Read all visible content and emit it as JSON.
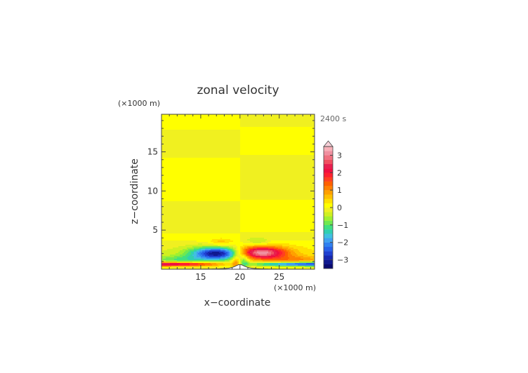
{
  "chart_data": {
    "type": "heatmap",
    "title": "zonal velocity",
    "time_label": "2400 s",
    "xlabel": "x−coordinate",
    "ylabel": "z−coordinate",
    "x_unit": "(×1000 m)",
    "y_unit": "(×1000 m)",
    "xlim": [
      10,
      29.5
    ],
    "ylim": [
      0,
      19.8
    ],
    "x_ticks": [
      15,
      20,
      25
    ],
    "y_ticks": [
      5,
      10,
      15
    ],
    "colorbar": {
      "levels": [
        -3.5,
        -3.25,
        -3.0,
        -2.75,
        -2.5,
        -2.25,
        -2.0,
        -1.75,
        -1.5,
        -1.25,
        -1.0,
        -0.75,
        -0.5,
        -0.25,
        0.0,
        0.25,
        0.5,
        0.75,
        1.0,
        1.25,
        1.5,
        1.75,
        2.0,
        2.25,
        2.5,
        2.75,
        3.0,
        3.25,
        3.5
      ],
      "tick_labels": [
        "-3",
        "-2",
        "-1",
        "0",
        "1",
        "2",
        "3"
      ],
      "tick_values": [
        -3,
        -2,
        -1,
        0,
        1,
        2,
        3
      ],
      "extend": "max",
      "colors": [
        "#0a0a70",
        "#101890",
        "#1828b0",
        "#2040d0",
        "#2860e8",
        "#3080f0",
        "#40a0f0",
        "#40c0e0",
        "#30d0b0",
        "#40e080",
        "#70e850",
        "#a0f030",
        "#d0f020",
        "#f0f020",
        "#ffff00",
        "#ffe000",
        "#ffc000",
        "#ffa000",
        "#ff8000",
        "#ff6000",
        "#ff4020",
        "#ff2030",
        "#f01040",
        "#e82050",
        "#f05060",
        "#f07080",
        "#f090a0",
        "#f8b0b8"
      ]
    },
    "bands": [
      {
        "x0": 10,
        "x1": 20,
        "z0": 17.8,
        "z1": 19.8,
        "value": 0.1
      },
      {
        "x0": 10,
        "x1": 20,
        "z0": 14.2,
        "z1": 17.8,
        "value": -0.1
      },
      {
        "x0": 10,
        "x1": 20,
        "z0": 8.7,
        "z1": 14.2,
        "value": 0.1
      },
      {
        "x0": 10,
        "x1": 20,
        "z0": 4.5,
        "z1": 8.7,
        "value": -0.1
      },
      {
        "x0": 10,
        "x1": 20,
        "z0": 3.5,
        "z1": 4.5,
        "value": 0.1
      },
      {
        "x0": 20,
        "x1": 29.5,
        "z0": 18.2,
        "z1": 19.8,
        "value": -0.1
      },
      {
        "x0": 20,
        "x1": 29.5,
        "z0": 14.6,
        "z1": 18.2,
        "value": 0.1
      },
      {
        "x0": 20,
        "x1": 29.5,
        "z0": 8.9,
        "z1": 14.6,
        "value": -0.1
      },
      {
        "x0": 20,
        "x1": 29.5,
        "z0": 4.7,
        "z1": 8.9,
        "value": 0.1
      },
      {
        "x0": 20,
        "x1": 29.5,
        "z0": 3.6,
        "z1": 4.7,
        "value": -0.1
      }
    ],
    "features": [
      {
        "cx": 10,
        "cz": 1.6,
        "rx": 9.5,
        "rz": 2.2,
        "amp": -0.25
      },
      {
        "cx": 29.5,
        "cz": 1.6,
        "rx": 9.5,
        "rz": 2.2,
        "amp": 0.25
      },
      {
        "cx": 17.3,
        "cz": 2.0,
        "rx": 3.3,
        "rz": 0.8,
        "amp": -3.3
      },
      {
        "cx": 22.5,
        "cz": 2.1,
        "rx": 3.3,
        "rz": 0.8,
        "amp": 3.3
      },
      {
        "cx": 12.5,
        "cz": 1.2,
        "rx": 3.5,
        "rz": 0.5,
        "amp": -0.8
      },
      {
        "cx": 27.0,
        "cz": 1.2,
        "rx": 3.5,
        "rz": 0.5,
        "amp": 0.8
      },
      {
        "cx": 10,
        "cz": 0.65,
        "rx": 9.8,
        "rz": 0.28,
        "amp": 3.0
      },
      {
        "cx": 29.5,
        "cz": 0.65,
        "rx": 9.8,
        "rz": 0.28,
        "amp": -3.0
      },
      {
        "cx": 17.5,
        "cz": 3.4,
        "rx": 1.5,
        "rz": 0.5,
        "amp": 0.6
      },
      {
        "cx": 22.3,
        "cz": 3.5,
        "rx": 1.5,
        "rz": 0.5,
        "amp": -0.6
      },
      {
        "cx": 19.5,
        "cz": 0.9,
        "rx": 0.6,
        "rz": 0.8,
        "amp": 1.0
      },
      {
        "cx": 20.5,
        "cz": 0.9,
        "rx": 0.6,
        "rz": 0.8,
        "amp": -1.0
      }
    ],
    "terrain": {
      "center": 20,
      "height": 0.6,
      "half_width": 0.8
    }
  }
}
